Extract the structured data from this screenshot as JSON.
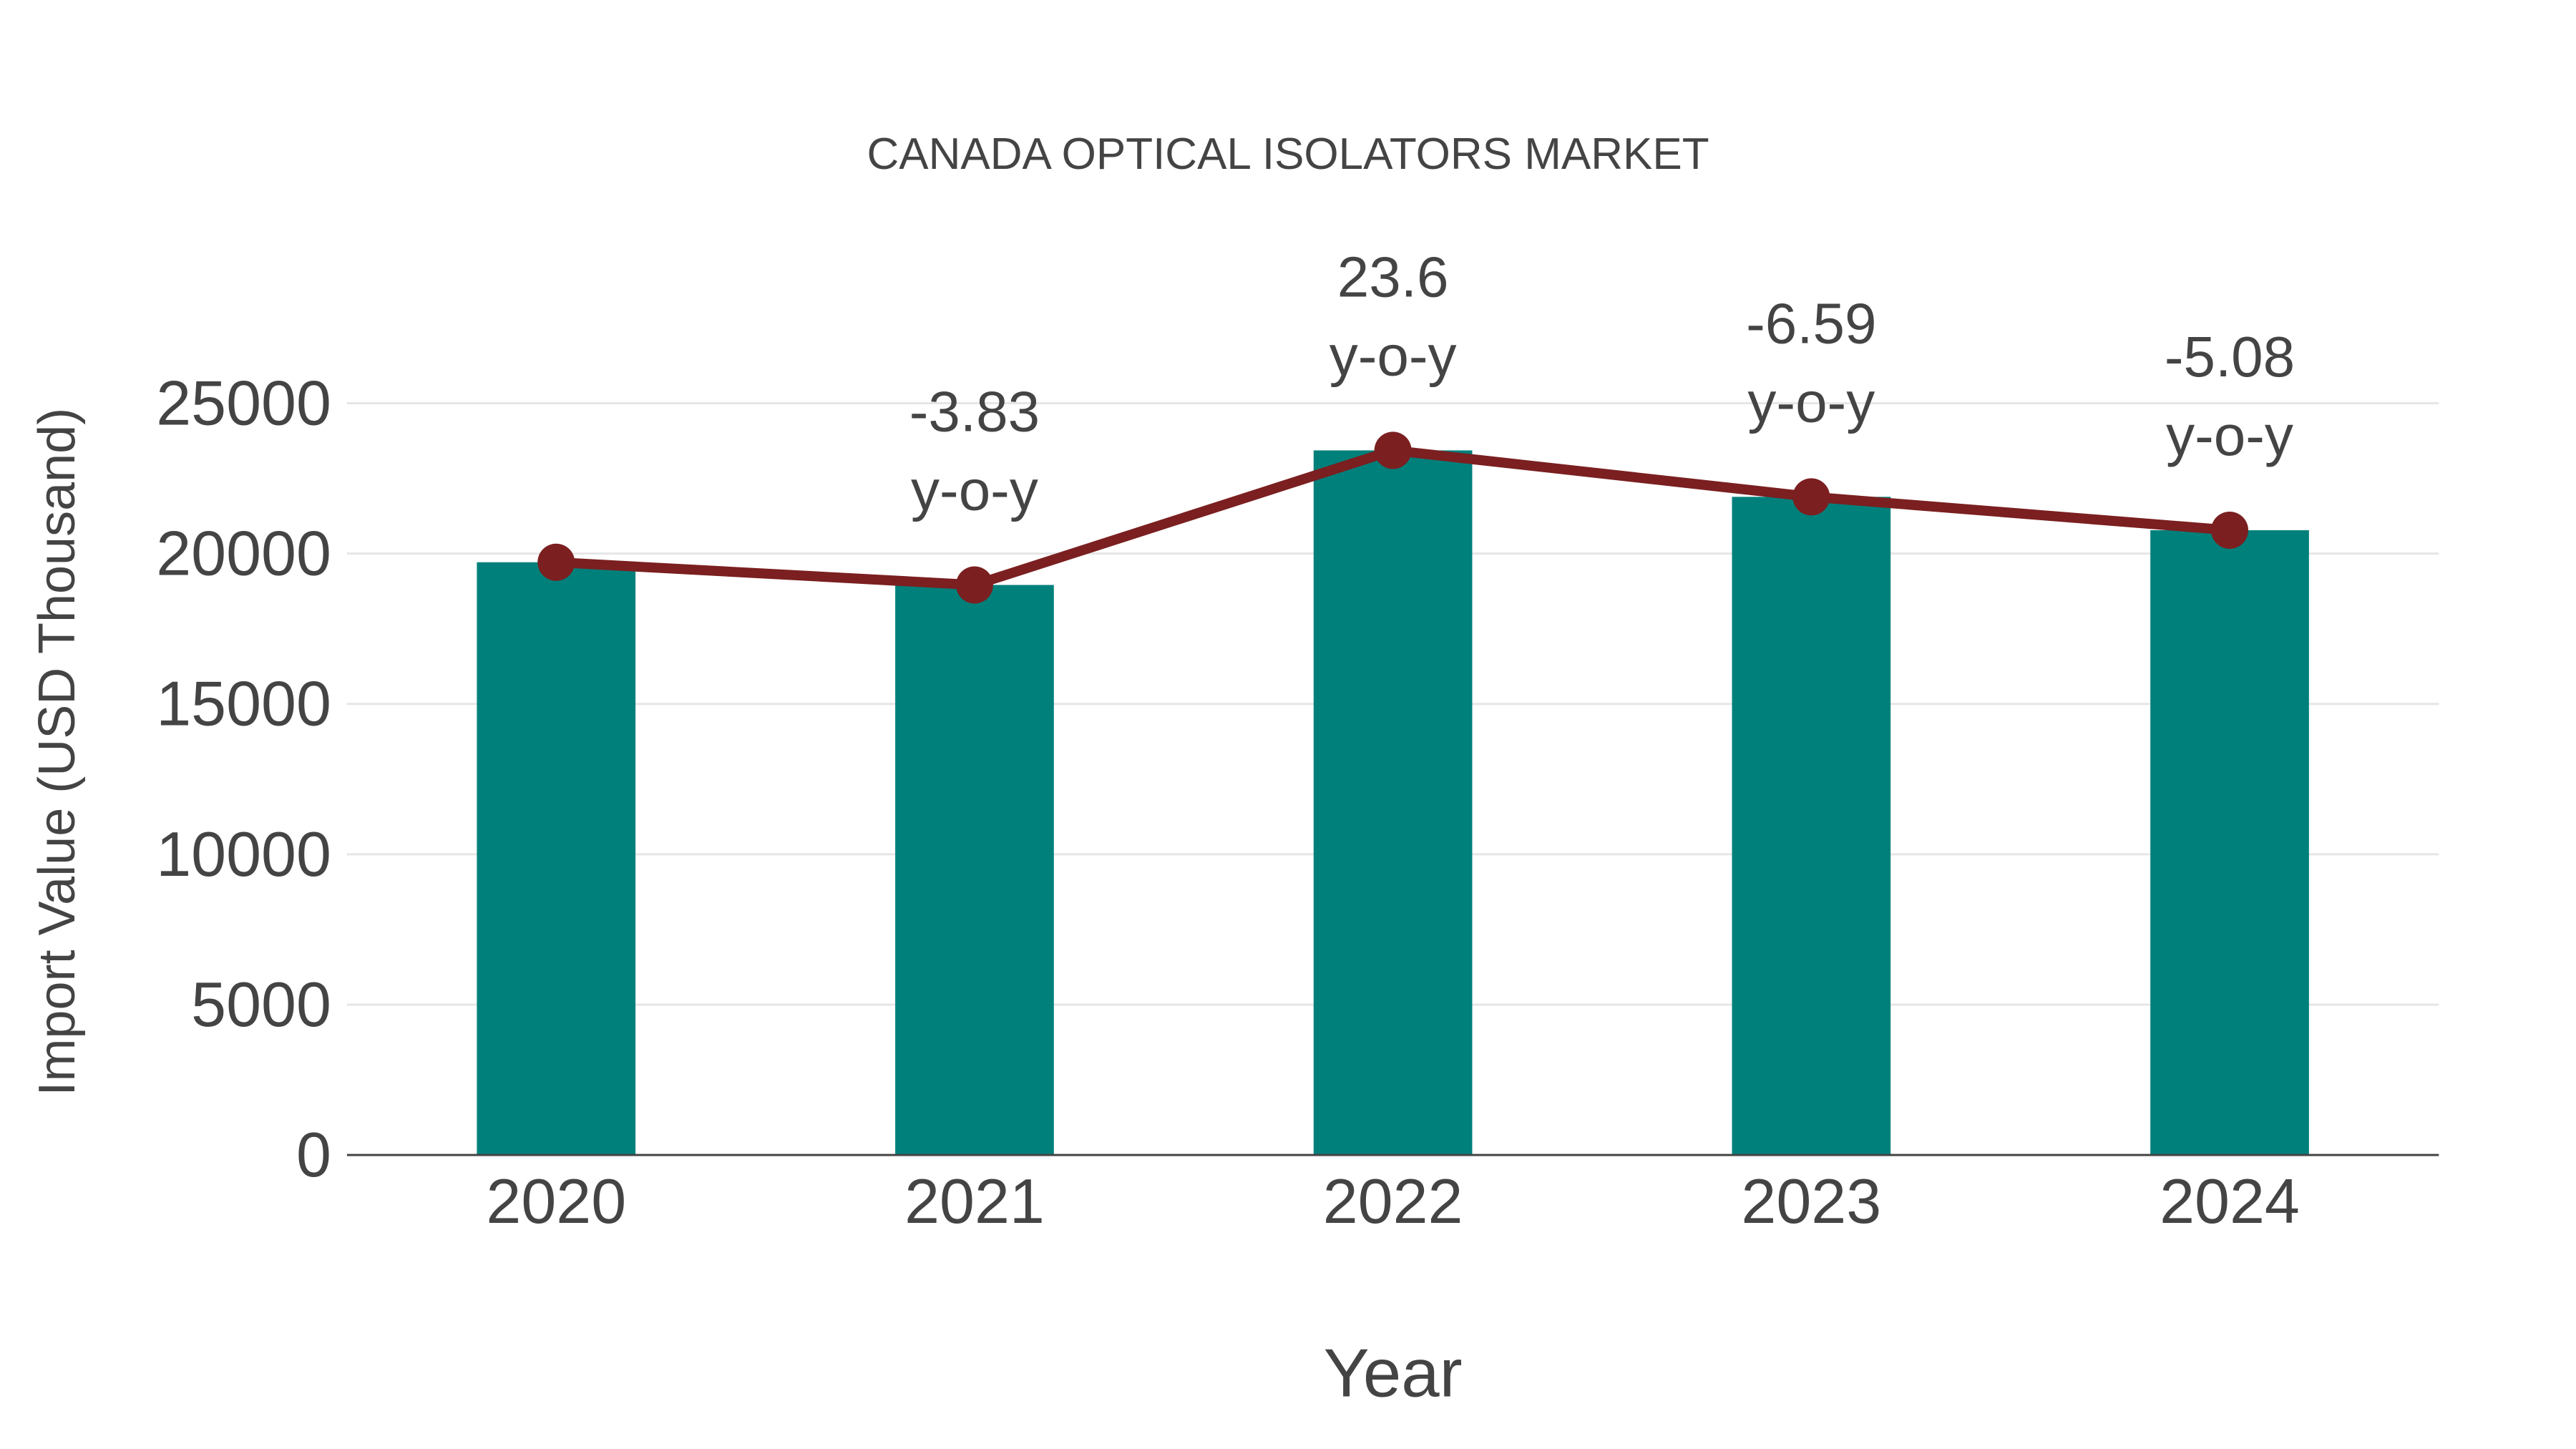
{
  "chart_data": {
    "type": "bar",
    "title": "CANADA OPTICAL ISOLATORS MARKET",
    "xlabel": "Year",
    "ylabel": "Import Value (USD Thousand)",
    "categories": [
      "2020",
      "2021",
      "2022",
      "2023",
      "2024"
    ],
    "series": [
      {
        "name": "Import Value",
        "type": "bar",
        "color": "#00807B",
        "values": [
          19710,
          18955,
          23430,
          21885,
          20775
        ]
      },
      {
        "name": "Trend",
        "type": "line",
        "color": "#7B1F20",
        "values": [
          19710,
          18955,
          23430,
          21885,
          20775
        ]
      }
    ],
    "annotations": [
      {
        "year": "2021",
        "value": "-3.83",
        "suffix": "y-o-y"
      },
      {
        "year": "2022",
        "value": "23.6",
        "suffix": "y-o-y"
      },
      {
        "year": "2023",
        "value": "-6.59",
        "suffix": "y-o-y"
      },
      {
        "year": "2024",
        "value": "-5.08",
        "suffix": "y-o-y"
      }
    ],
    "yticks": [
      "0",
      "5000",
      "10000",
      "15000",
      "20000",
      "25000"
    ],
    "ylim": [
      0,
      25000
    ],
    "grid": true,
    "legend": "none"
  }
}
